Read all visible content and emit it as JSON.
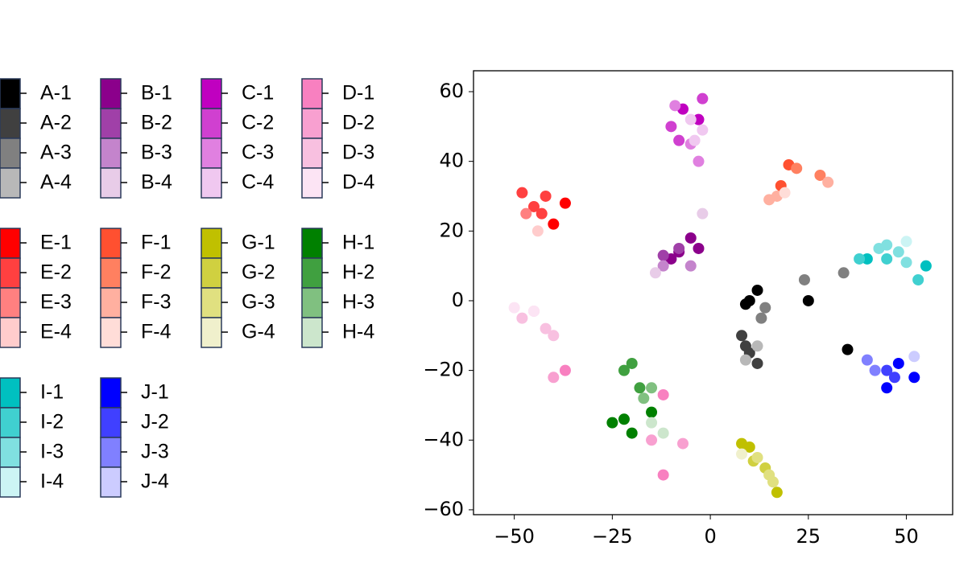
{
  "chart_data": {
    "type": "scatter",
    "xlim": [
      -60.4,
      61.8
    ],
    "ylim": [
      -61.4,
      66
    ],
    "xticks": [
      {
        "value": -50,
        "label": "−50"
      },
      {
        "value": -25,
        "label": "−25"
      },
      0,
      25,
      50
    ],
    "yticks": [
      {
        "value": -60,
        "label": "−60"
      },
      {
        "value": -40,
        "label": "−40"
      },
      {
        "value": -20,
        "label": "−20"
      },
      0,
      20,
      40,
      60
    ],
    "series": [
      {
        "name": "A-1",
        "color": "#000000",
        "x": [
          10,
          12,
          25,
          35,
          9
        ],
        "y": [
          0,
          3,
          0,
          -14,
          -1
        ]
      },
      {
        "name": "A-2",
        "color": "#404040",
        "x": [
          8,
          10,
          12,
          9
        ],
        "y": [
          -10,
          -15,
          -18,
          -13
        ]
      },
      {
        "name": "A-3",
        "color": "#808080",
        "x": [
          13,
          24,
          34,
          14
        ],
        "y": [
          -5,
          6,
          8,
          -2
        ]
      },
      {
        "name": "A-4",
        "color": "#b8b8b8",
        "x": [
          12,
          9
        ],
        "y": [
          -13,
          -17
        ]
      },
      {
        "name": "B-1",
        "color": "#8b008b",
        "x": [
          -5,
          -10,
          -3,
          -8
        ],
        "y": [
          18,
          12,
          15,
          14
        ]
      },
      {
        "name": "B-2",
        "color": "#a040a8",
        "x": [
          -8,
          -12
        ],
        "y": [
          15,
          13
        ]
      },
      {
        "name": "B-3",
        "color": "#c484cc",
        "x": [
          -12,
          -5
        ],
        "y": [
          10,
          10
        ]
      },
      {
        "name": "B-4",
        "color": "#e8cce8",
        "x": [
          -2,
          -14
        ],
        "y": [
          25,
          8
        ]
      },
      {
        "name": "C-1",
        "color": "#c000c0",
        "x": [
          -3,
          -7
        ],
        "y": [
          52,
          55
        ]
      },
      {
        "name": "C-2",
        "color": "#d040d0",
        "x": [
          -10,
          -2,
          -8
        ],
        "y": [
          50,
          58,
          46
        ]
      },
      {
        "name": "C-3",
        "color": "#e080e0",
        "x": [
          -5,
          -3,
          -9
        ],
        "y": [
          45,
          40,
          56
        ]
      },
      {
        "name": "C-4",
        "color": "#f0c8f0",
        "x": [
          -5,
          -4,
          -2
        ],
        "y": [
          52,
          46,
          49
        ]
      },
      {
        "name": "D-1",
        "color": "#f880c0",
        "x": [
          -37,
          -12,
          -12
        ],
        "y": [
          -20,
          -27,
          -50
        ]
      },
      {
        "name": "D-2",
        "color": "#f8a0d0",
        "x": [
          -40,
          -15,
          -7
        ],
        "y": [
          -22,
          -40,
          -41
        ]
      },
      {
        "name": "D-3",
        "color": "#f8c0e0",
        "x": [
          -48,
          -42,
          -40,
          -45
        ],
        "y": [
          -5,
          -8,
          -10,
          -3
        ]
      },
      {
        "name": "D-4",
        "color": "#fce4f4",
        "x": [
          -50,
          -45
        ],
        "y": [
          -2,
          -3
        ]
      },
      {
        "name": "E-1",
        "color": "#ff0000",
        "x": [
          -37,
          -40
        ],
        "y": [
          28,
          22
        ]
      },
      {
        "name": "E-2",
        "color": "#ff4040",
        "x": [
          -45,
          -42,
          -48,
          -43
        ],
        "y": [
          27,
          30,
          31,
          25
        ]
      },
      {
        "name": "E-3",
        "color": "#ff8080",
        "x": [
          -47
        ],
        "y": [
          25
        ]
      },
      {
        "name": "E-4",
        "color": "#ffcccc",
        "x": [
          -44
        ],
        "y": [
          20
        ]
      },
      {
        "name": "F-1",
        "color": "#ff5030",
        "x": [
          20,
          18
        ],
        "y": [
          39,
          33
        ]
      },
      {
        "name": "F-2",
        "color": "#ff8060",
        "x": [
          22,
          28
        ],
        "y": [
          38,
          36
        ]
      },
      {
        "name": "F-3",
        "color": "#ffb0a0",
        "x": [
          17,
          30,
          15
        ],
        "y": [
          30,
          34,
          29
        ]
      },
      {
        "name": "F-4",
        "color": "#ffddd8",
        "x": [
          19
        ],
        "y": [
          31
        ]
      },
      {
        "name": "G-1",
        "color": "#c0c000",
        "x": [
          10,
          17,
          8
        ],
        "y": [
          -42,
          -55,
          -41
        ]
      },
      {
        "name": "G-2",
        "color": "#d0d040",
        "x": [
          14,
          11
        ],
        "y": [
          -48,
          -46
        ]
      },
      {
        "name": "G-3",
        "color": "#e0e080",
        "x": [
          15,
          12,
          16
        ],
        "y": [
          -50,
          -45,
          -52
        ]
      },
      {
        "name": "G-4",
        "color": "#f0f0cc",
        "x": [
          8
        ],
        "y": [
          -44
        ]
      },
      {
        "name": "H-1",
        "color": "#008000",
        "x": [
          -25,
          -20,
          -15,
          -22
        ],
        "y": [
          -35,
          -38,
          -32,
          -34
        ]
      },
      {
        "name": "H-2",
        "color": "#40a040",
        "x": [
          -22,
          -18,
          -20
        ],
        "y": [
          -20,
          -25,
          -18
        ]
      },
      {
        "name": "H-3",
        "color": "#80c080",
        "x": [
          -15,
          -17
        ],
        "y": [
          -25,
          -28
        ]
      },
      {
        "name": "H-4",
        "color": "#cce6cc",
        "x": [
          -15,
          -12
        ],
        "y": [
          -35,
          -38
        ]
      },
      {
        "name": "I-1",
        "color": "#00c0c0",
        "x": [
          40,
          55
        ],
        "y": [
          12,
          10
        ]
      },
      {
        "name": "I-2",
        "color": "#40d0d0",
        "x": [
          45,
          53,
          38
        ],
        "y": [
          12,
          6,
          12
        ]
      },
      {
        "name": "I-3",
        "color": "#80e0e0",
        "x": [
          48,
          43,
          50,
          45
        ],
        "y": [
          14,
          15,
          11,
          16
        ]
      },
      {
        "name": "I-4",
        "color": "#ccf4f4",
        "x": [
          50
        ],
        "y": [
          17
        ]
      },
      {
        "name": "J-1",
        "color": "#0000ff",
        "x": [
          48,
          52,
          45
        ],
        "y": [
          -18,
          -22,
          -25
        ]
      },
      {
        "name": "J-2",
        "color": "#4040ff",
        "x": [
          45,
          47
        ],
        "y": [
          -20,
          -22
        ]
      },
      {
        "name": "J-3",
        "color": "#8080ff",
        "x": [
          40,
          42
        ],
        "y": [
          -17,
          -20
        ]
      },
      {
        "name": "J-4",
        "color": "#ccccff",
        "x": [
          52
        ],
        "y": [
          -16
        ]
      }
    ]
  }
}
